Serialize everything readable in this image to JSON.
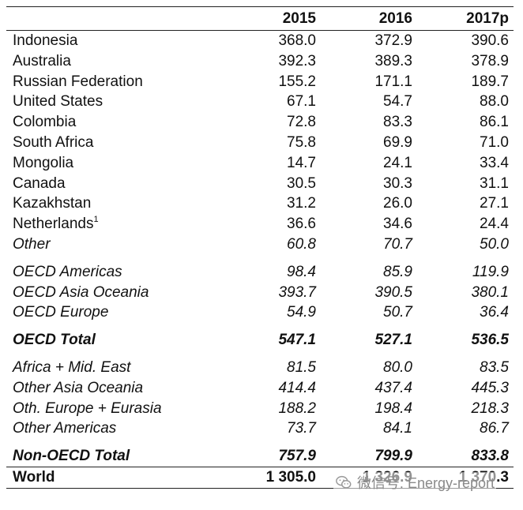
{
  "table": {
    "headers": [
      "",
      "2015",
      "2016",
      "2017p"
    ],
    "rows": [
      {
        "label": "Indonesia",
        "sup": "",
        "values": [
          "368.0",
          "372.9",
          "390.6"
        ],
        "style": "normal"
      },
      {
        "label": "Australia",
        "sup": "",
        "values": [
          "392.3",
          "389.3",
          "378.9"
        ],
        "style": "normal"
      },
      {
        "label": "Russian Federation",
        "sup": "",
        "values": [
          "155.2",
          "171.1",
          "189.7"
        ],
        "style": "normal"
      },
      {
        "label": "United States",
        "sup": "",
        "values": [
          "67.1",
          "54.7",
          "88.0"
        ],
        "style": "normal"
      },
      {
        "label": "Colombia",
        "sup": "",
        "values": [
          "72.8",
          "83.3",
          "86.1"
        ],
        "style": "normal"
      },
      {
        "label": "South Africa",
        "sup": "",
        "values": [
          "75.8",
          "69.9",
          "71.0"
        ],
        "style": "normal"
      },
      {
        "label": "Mongolia",
        "sup": "",
        "values": [
          "14.7",
          "24.1",
          "33.4"
        ],
        "style": "normal"
      },
      {
        "label": "Canada",
        "sup": "",
        "values": [
          "30.5",
          "30.3",
          "31.1"
        ],
        "style": "normal"
      },
      {
        "label": "Kazakhstan",
        "sup": "",
        "values": [
          "31.2",
          "26.0",
          "27.1"
        ],
        "style": "normal"
      },
      {
        "label": "Netherlands",
        "sup": "1",
        "values": [
          "36.6",
          "34.6",
          "24.4"
        ],
        "style": "normal"
      },
      {
        "label": "Other",
        "sup": "",
        "values": [
          "60.8",
          "70.7",
          "50.0"
        ],
        "style": "italic"
      },
      {
        "label": "OECD Americas",
        "sup": "",
        "values": [
          "98.4",
          "85.9",
          "119.9"
        ],
        "style": "italic",
        "gap": true
      },
      {
        "label": "OECD Asia Oceania",
        "sup": "",
        "values": [
          "393.7",
          "390.5",
          "380.1"
        ],
        "style": "italic"
      },
      {
        "label": "OECD Europe",
        "sup": "",
        "values": [
          "54.9",
          "50.7",
          "36.4"
        ],
        "style": "italic"
      },
      {
        "label": "OECD Total",
        "sup": "",
        "values": [
          "547.1",
          "527.1",
          "536.5"
        ],
        "style": "bold-italic",
        "gap": true
      },
      {
        "label": "Africa + Mid. East",
        "sup": "",
        "values": [
          "81.5",
          "80.0",
          "83.5"
        ],
        "style": "italic",
        "gap": true
      },
      {
        "label": "Other Asia Oceania",
        "sup": "",
        "values": [
          "414.4",
          "437.4",
          "445.3"
        ],
        "style": "italic"
      },
      {
        "label": "Oth. Europe + Eurasia",
        "sup": "",
        "values": [
          "188.2",
          "198.4",
          "218.3"
        ],
        "style": "italic"
      },
      {
        "label": "Other Americas",
        "sup": "",
        "values": [
          "73.7",
          "84.1",
          "86.7"
        ],
        "style": "italic"
      },
      {
        "label": "Non-OECD Total",
        "sup": "",
        "values": [
          "757.9",
          "799.9",
          "833.8"
        ],
        "style": "bold-italic",
        "gap": true
      },
      {
        "label": "World",
        "sup": "",
        "values": [
          "1 305.0",
          "1 326.9",
          "1 370.3"
        ],
        "style": "world"
      }
    ]
  },
  "watermark": {
    "text": "微信号: Energy-report",
    "icon": "wechat-icon"
  }
}
